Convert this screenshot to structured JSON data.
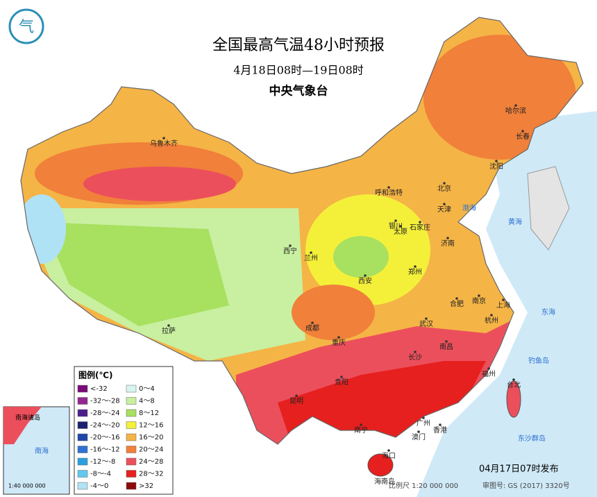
{
  "header": {
    "title": "全国最高气温48小时预报",
    "subtitle": "4月18日08时—19日08时",
    "agency": "中央气象台"
  },
  "legend": {
    "title": "图例(℃)",
    "items": [
      {
        "label": "<-32",
        "color": "#7a0a7a"
      },
      {
        "label": "0～4",
        "color": "#d8f5f0"
      },
      {
        "label": "-32～-28",
        "color": "#93278f"
      },
      {
        "label": "4～8",
        "color": "#c8f0a0"
      },
      {
        "label": "-28～-24",
        "color": "#4b1f8a"
      },
      {
        "label": "8～12",
        "color": "#a8e060"
      },
      {
        "label": "-24～-20",
        "color": "#1c2070"
      },
      {
        "label": "12～16",
        "color": "#f4f03a"
      },
      {
        "label": "-20～-16",
        "color": "#1f45a8"
      },
      {
        "label": "16～20",
        "color": "#f5b446"
      },
      {
        "label": "-16～-12",
        "color": "#2d72d2"
      },
      {
        "label": "20～24",
        "color": "#f0803a"
      },
      {
        "label": "-12～-8",
        "color": "#2aa0e0"
      },
      {
        "label": "24～28",
        "color": "#ec4f5c"
      },
      {
        "label": "-8～-4",
        "color": "#62c8f0"
      },
      {
        "label": "28～32",
        "color": "#e6201e"
      },
      {
        "label": "-4～0",
        "color": "#b0e2f6"
      },
      {
        "label": ">32",
        "color": "#8c0a0a"
      }
    ]
  },
  "cities": [
    "乌鲁木齐",
    "哈尔滨",
    "长春",
    "沈阳",
    "呼和浩特",
    "北京",
    "天津",
    "银川",
    "太原",
    "石家庄",
    "济南",
    "西宁",
    "兰州",
    "郑州",
    "西安",
    "合肥",
    "南京",
    "上海",
    "杭州",
    "拉萨",
    "成都",
    "重庆",
    "武汉",
    "长沙",
    "南昌",
    "福州",
    "台北",
    "贵阳",
    "昆明",
    "南宁",
    "广州",
    "澳门",
    "香港",
    "海口"
  ],
  "seas": [
    "渤海",
    "黄海",
    "东海",
    "海南岛",
    "钓鱼岛",
    "东沙群岛"
  ],
  "inset": {
    "title": "南海诸岛",
    "sea": "南海",
    "scale": "1:40 000 000"
  },
  "footer": {
    "published": "04月17日07时发布",
    "scale": "比例尺 1:20 000 000",
    "review": "审图号: GS (2017) 3320号"
  }
}
